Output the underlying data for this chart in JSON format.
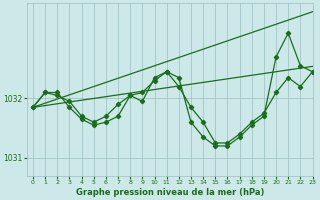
{
  "title": "Graphe pression niveau de la mer (hPa)",
  "bg_color": "#cce8e8",
  "grid_color": "#9bbfbf",
  "line_color": "#1a6e1a",
  "xlim": [
    -0.5,
    23
  ],
  "ylim": [
    1030.7,
    1033.6
  ],
  "yticks": [
    1031,
    1032
  ],
  "xticks": [
    0,
    1,
    2,
    3,
    4,
    5,
    6,
    7,
    8,
    9,
    10,
    11,
    12,
    13,
    14,
    15,
    16,
    17,
    18,
    19,
    20,
    21,
    22,
    23
  ],
  "hours": [
    0,
    1,
    2,
    3,
    4,
    5,
    6,
    7,
    8,
    9,
    10,
    11,
    12,
    13,
    14,
    15,
    16,
    17,
    18,
    19,
    20,
    21,
    22,
    23
  ],
  "pressure_line1": [
    1031.85,
    1032.1,
    1032.1,
    1031.85,
    1031.65,
    1031.55,
    1031.6,
    1031.7,
    1032.05,
    1031.95,
    1032.35,
    1032.45,
    1032.35,
    1031.6,
    1031.35,
    1031.2,
    1031.2,
    1031.35,
    1031.55,
    1031.7,
    1032.7,
    1033.1,
    1032.55,
    1032.45
  ],
  "pressure_line2": [
    1031.85,
    1032.1,
    1032.05,
    1031.95,
    1031.7,
    1031.6,
    1031.7,
    1031.9,
    1032.05,
    1032.1,
    1032.3,
    1032.45,
    1032.2,
    1031.85,
    1031.6,
    1031.25,
    1031.25,
    1031.4,
    1031.6,
    1031.75,
    1032.1,
    1032.35,
    1032.2,
    1032.45
  ],
  "trend_low": [
    1031.85,
    1031.88,
    1031.91,
    1031.94,
    1031.97,
    1032.0,
    1032.03,
    1032.06,
    1032.09,
    1032.12,
    1032.15,
    1032.18,
    1032.21,
    1032.24,
    1032.27,
    1032.3,
    1032.33,
    1032.36,
    1032.39,
    1032.42,
    1032.45,
    1032.48,
    1032.51,
    1032.54
  ],
  "trend_high": [
    1031.85,
    1031.92,
    1031.99,
    1032.06,
    1032.13,
    1032.2,
    1032.27,
    1032.34,
    1032.41,
    1032.48,
    1032.55,
    1032.62,
    1032.69,
    1032.76,
    1032.83,
    1032.9,
    1032.97,
    1033.04,
    1033.11,
    1033.18,
    1033.25,
    1033.32,
    1033.39,
    1033.46
  ]
}
